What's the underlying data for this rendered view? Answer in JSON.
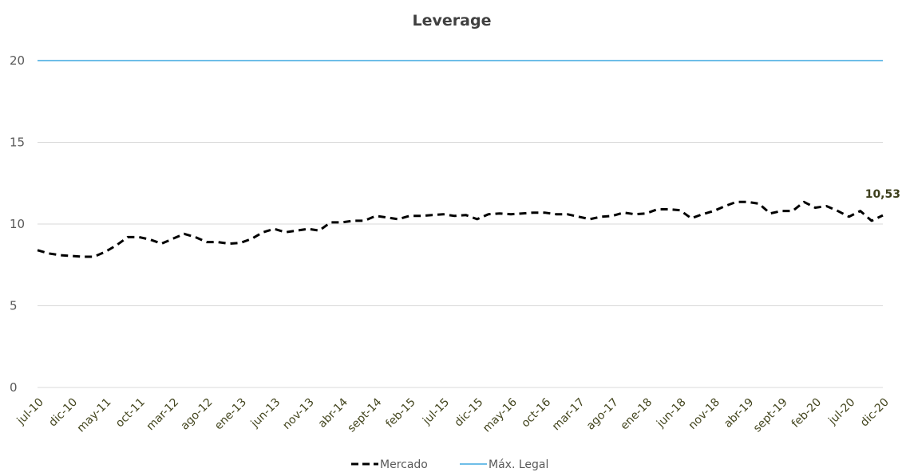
{
  "chart_data": {
    "type": "line",
    "title": "Leverage",
    "xlabel": "",
    "ylabel": "",
    "ylim": [
      0,
      20
    ],
    "yticks": [
      "0",
      "5",
      "10",
      "15",
      "20"
    ],
    "grid": true,
    "legend_position": "bottom",
    "x_tick_labels": [
      "jul-10",
      "dic-10",
      "may-11",
      "oct-11",
      "mar-12",
      "ago-12",
      "ene-13",
      "jun-13",
      "nov-13",
      "abr-14",
      "sept-14",
      "feb-15",
      "jul-15",
      "dic-15",
      "may-16",
      "oct-16",
      "mar-17",
      "ago-17",
      "ene-18",
      "jun-18",
      "nov-18",
      "abr-19",
      "sept-19",
      "feb-20",
      "jul-20",
      "dic-20"
    ],
    "series": [
      {
        "name": "Mercado",
        "color": "#000000",
        "style": "dashed",
        "values": [
          8.4,
          8.2,
          8.1,
          8.05,
          8.0,
          8.0,
          8.3,
          8.7,
          9.2,
          9.2,
          9.05,
          8.8,
          9.1,
          9.4,
          9.2,
          8.9,
          8.9,
          8.8,
          8.85,
          9.1,
          9.5,
          9.7,
          9.5,
          9.6,
          9.7,
          9.6,
          10.1,
          10.1,
          10.2,
          10.2,
          10.5,
          10.4,
          10.3,
          10.5,
          10.5,
          10.55,
          10.6,
          10.5,
          10.55,
          10.3,
          10.6,
          10.65,
          10.6,
          10.65,
          10.7,
          10.7,
          10.6,
          10.6,
          10.45,
          10.3,
          10.45,
          10.5,
          10.7,
          10.6,
          10.65,
          10.9,
          10.9,
          10.85,
          10.35,
          10.6,
          10.8,
          11.1,
          11.35,
          11.35,
          11.25,
          10.65,
          10.8,
          10.8,
          11.35,
          11.0,
          11.1,
          10.8,
          10.45,
          10.8,
          10.2,
          10.53
        ]
      },
      {
        "name": "Máx. Legal",
        "color": "#3fa9e0",
        "style": "solid",
        "values": [
          20,
          20
        ]
      }
    ],
    "data_labels": [
      {
        "series": "Mercado",
        "point": "last",
        "text": "10,53"
      }
    ]
  }
}
